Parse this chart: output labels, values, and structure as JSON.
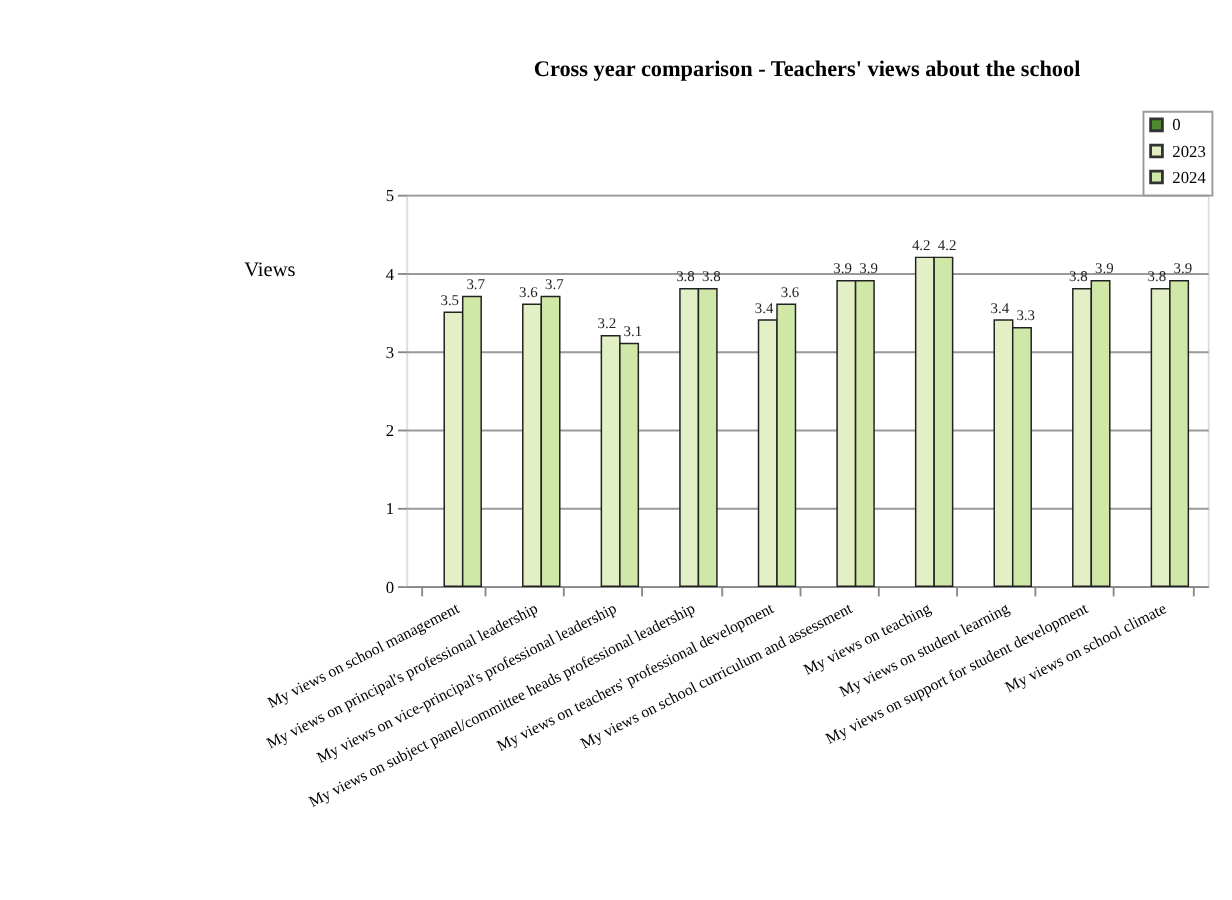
{
  "chart_data": {
    "type": "bar",
    "title": "Cross year comparison - Teachers' views about the school",
    "ylabel": "Views",
    "categories": [
      "My views on school management",
      "My views on principal's professional leadership",
      "My views on vice-principal's professional leadership",
      "My views on subject panel/committee heads professional leadership",
      "My views on teachers' professional development",
      "My views on school curriculum and assessment",
      "My views on teaching",
      "My views on student learning",
      "My views on support for student development",
      "My views on school climate"
    ],
    "series": [
      {
        "name": "0",
        "color": "#4e8a2e",
        "values": [
          null,
          null,
          null,
          null,
          null,
          null,
          null,
          null,
          null,
          null
        ]
      },
      {
        "name": "2023",
        "color": "#e3efc4",
        "values": [
          3.5,
          3.6,
          3.2,
          3.8,
          3.4,
          3.9,
          4.2,
          3.4,
          3.8,
          3.8
        ]
      },
      {
        "name": "2024",
        "color": "#cfe8a8",
        "values": [
          3.7,
          3.7,
          3.1,
          3.8,
          3.6,
          3.9,
          4.2,
          3.3,
          3.9,
          3.9
        ]
      }
    ],
    "ylim": [
      0,
      5
    ],
    "yticks": [
      0,
      1,
      2,
      3,
      4,
      5
    ],
    "grid": "y",
    "legend": "top right",
    "data_labels": true
  }
}
